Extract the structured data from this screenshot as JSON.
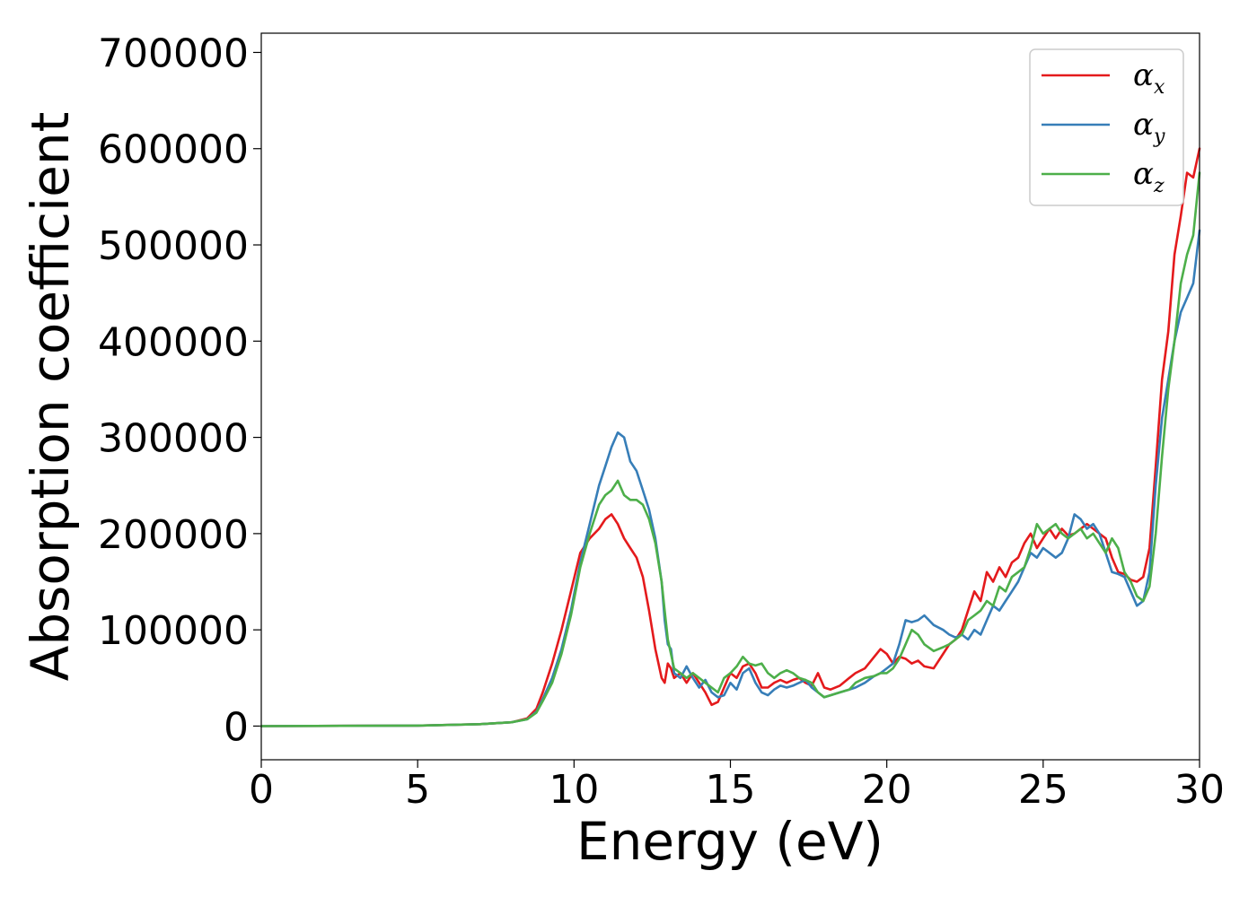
{
  "chart_data": {
    "type": "line",
    "title": "",
    "xlabel": "Energy (eV)",
    "ylabel": "Absorption coefficient",
    "xlim": [
      0,
      30
    ],
    "ylim": [
      -35000,
      720000
    ],
    "xticks": [
      0,
      5,
      10,
      15,
      20,
      25,
      30
    ],
    "yticks": [
      0,
      100000,
      200000,
      300000,
      400000,
      500000,
      600000,
      700000
    ],
    "xtick_labels": [
      "0",
      "5",
      "10",
      "15",
      "20",
      "25",
      "30"
    ],
    "ytick_labels": [
      "0",
      "100000",
      "200000",
      "300000",
      "400000",
      "500000",
      "600000",
      "700000"
    ],
    "grid": false,
    "legend_position": "top-right",
    "series": [
      {
        "name": "αx",
        "label_base": "α",
        "label_sub": "x",
        "color": "#e41a1c",
        "x": [
          0,
          5,
          7,
          8,
          8.5,
          8.8,
          9.0,
          9.3,
          9.6,
          9.9,
          10.2,
          10.5,
          10.8,
          11.0,
          11.2,
          11.4,
          11.6,
          11.8,
          12.0,
          12.2,
          12.4,
          12.6,
          12.8,
          12.9,
          13.0,
          13.1,
          13.2,
          13.4,
          13.6,
          13.8,
          14.0,
          14.2,
          14.4,
          14.6,
          14.8,
          15.0,
          15.2,
          15.4,
          15.6,
          15.8,
          16.0,
          16.2,
          16.4,
          16.6,
          16.8,
          17.0,
          17.2,
          17.4,
          17.6,
          17.8,
          18.0,
          18.2,
          18.5,
          18.8,
          19.0,
          19.3,
          19.6,
          19.8,
          20.0,
          20.2,
          20.4,
          20.6,
          20.8,
          21.0,
          21.2,
          21.5,
          21.8,
          22.0,
          22.2,
          22.4,
          22.6,
          22.8,
          23.0,
          23.2,
          23.4,
          23.6,
          23.8,
          24.0,
          24.2,
          24.4,
          24.6,
          24.8,
          25.0,
          25.2,
          25.4,
          25.6,
          25.8,
          26.0,
          26.2,
          26.4,
          26.6,
          26.8,
          27.0,
          27.2,
          27.4,
          27.6,
          27.8,
          28.0,
          28.2,
          28.4,
          28.6,
          28.8,
          29.0,
          29.2,
          29.4,
          29.6,
          29.8,
          30.0
        ],
        "y": [
          0,
          500,
          2000,
          4000,
          8000,
          18000,
          35000,
          65000,
          100000,
          140000,
          180000,
          195000,
          205000,
          215000,
          220000,
          210000,
          195000,
          185000,
          175000,
          155000,
          120000,
          80000,
          50000,
          45000,
          65000,
          60000,
          50000,
          55000,
          45000,
          55000,
          45000,
          35000,
          22000,
          25000,
          40000,
          55000,
          50000,
          62000,
          65000,
          55000,
          40000,
          40000,
          45000,
          48000,
          45000,
          48000,
          50000,
          45000,
          42000,
          55000,
          40000,
          38000,
          42000,
          50000,
          55000,
          60000,
          72000,
          80000,
          75000,
          65000,
          72000,
          70000,
          65000,
          68000,
          62000,
          60000,
          75000,
          85000,
          90000,
          100000,
          120000,
          140000,
          130000,
          160000,
          150000,
          165000,
          155000,
          170000,
          175000,
          190000,
          200000,
          185000,
          195000,
          205000,
          195000,
          205000,
          198000,
          200000,
          205000,
          210000,
          205000,
          200000,
          195000,
          175000,
          160000,
          158000,
          152000,
          150000,
          155000,
          185000,
          270000,
          360000,
          410000,
          490000,
          530000,
          575000,
          570000,
          600000
        ]
      },
      {
        "name": "αy",
        "label_base": "α",
        "label_sub": "y",
        "color": "#377eb8",
        "x": [
          0,
          5,
          7,
          8,
          8.5,
          8.8,
          9.0,
          9.3,
          9.6,
          9.9,
          10.2,
          10.5,
          10.8,
          11.0,
          11.2,
          11.4,
          11.6,
          11.8,
          12.0,
          12.2,
          12.4,
          12.6,
          12.8,
          12.9,
          13.0,
          13.1,
          13.2,
          13.4,
          13.6,
          13.8,
          14.0,
          14.2,
          14.4,
          14.6,
          14.8,
          15.0,
          15.2,
          15.4,
          15.6,
          15.8,
          16.0,
          16.2,
          16.4,
          16.6,
          16.8,
          17.0,
          17.2,
          17.4,
          17.6,
          17.8,
          18.0,
          18.2,
          18.5,
          18.8,
          19.0,
          19.3,
          19.6,
          19.8,
          20.0,
          20.2,
          20.4,
          20.6,
          20.8,
          21.0,
          21.2,
          21.5,
          21.8,
          22.0,
          22.2,
          22.4,
          22.6,
          22.8,
          23.0,
          23.2,
          23.4,
          23.6,
          23.8,
          24.0,
          24.2,
          24.4,
          24.6,
          24.8,
          25.0,
          25.2,
          25.4,
          25.6,
          25.8,
          26.0,
          26.2,
          26.4,
          26.6,
          26.8,
          27.0,
          27.2,
          27.4,
          27.6,
          27.8,
          28.0,
          28.2,
          28.4,
          28.6,
          28.8,
          29.0,
          29.2,
          29.4,
          29.6,
          29.8,
          30.0
        ],
        "y": [
          0,
          500,
          2000,
          4000,
          7000,
          15000,
          28000,
          50000,
          80000,
          120000,
          170000,
          210000,
          250000,
          270000,
          290000,
          305000,
          300000,
          275000,
          265000,
          245000,
          225000,
          195000,
          150000,
          110000,
          85000,
          80000,
          55000,
          50000,
          62000,
          50000,
          40000,
          48000,
          35000,
          30000,
          32000,
          45000,
          38000,
          55000,
          60000,
          45000,
          35000,
          32000,
          38000,
          42000,
          40000,
          42000,
          45000,
          48000,
          40000,
          35000,
          30000,
          32000,
          35000,
          38000,
          40000,
          45000,
          52000,
          55000,
          60000,
          65000,
          85000,
          110000,
          108000,
          110000,
          115000,
          105000,
          100000,
          95000,
          92000,
          95000,
          90000,
          100000,
          95000,
          110000,
          125000,
          120000,
          130000,
          140000,
          150000,
          165000,
          180000,
          175000,
          185000,
          180000,
          175000,
          180000,
          195000,
          220000,
          215000,
          205000,
          210000,
          200000,
          180000,
          160000,
          158000,
          155000,
          140000,
          125000,
          130000,
          160000,
          250000,
          320000,
          360000,
          400000,
          430000,
          445000,
          460000,
          515000
        ]
      },
      {
        "name": "αz",
        "label_base": "α",
        "label_sub": "z",
        "color": "#4daf4a",
        "x": [
          0,
          5,
          7,
          8,
          8.5,
          8.8,
          9.0,
          9.3,
          9.6,
          9.9,
          10.2,
          10.5,
          10.8,
          11.0,
          11.2,
          11.4,
          11.6,
          11.8,
          12.0,
          12.2,
          12.4,
          12.6,
          12.8,
          12.9,
          13.0,
          13.1,
          13.2,
          13.4,
          13.6,
          13.8,
          14.0,
          14.2,
          14.4,
          14.6,
          14.8,
          15.0,
          15.2,
          15.4,
          15.6,
          15.8,
          16.0,
          16.2,
          16.4,
          16.6,
          16.8,
          17.0,
          17.2,
          17.4,
          17.6,
          17.8,
          18.0,
          18.2,
          18.5,
          18.8,
          19.0,
          19.3,
          19.6,
          19.8,
          20.0,
          20.2,
          20.4,
          20.6,
          20.8,
          21.0,
          21.2,
          21.5,
          21.8,
          22.0,
          22.2,
          22.4,
          22.6,
          22.8,
          23.0,
          23.2,
          23.4,
          23.6,
          23.8,
          24.0,
          24.2,
          24.4,
          24.6,
          24.8,
          25.0,
          25.2,
          25.4,
          25.6,
          25.8,
          26.0,
          26.2,
          26.4,
          26.6,
          26.8,
          27.0,
          27.2,
          27.4,
          27.6,
          27.8,
          28.0,
          28.2,
          28.4,
          28.6,
          28.8,
          29.0,
          29.2,
          29.4,
          29.6,
          29.8,
          30.0
        ],
        "y": [
          0,
          500,
          2000,
          4000,
          7000,
          14000,
          26000,
          45000,
          75000,
          115000,
          165000,
          200000,
          230000,
          240000,
          245000,
          255000,
          240000,
          235000,
          235000,
          230000,
          215000,
          190000,
          150000,
          120000,
          90000,
          75000,
          60000,
          55000,
          50000,
          55000,
          50000,
          45000,
          40000,
          35000,
          50000,
          55000,
          62000,
          72000,
          65000,
          63000,
          65000,
          55000,
          50000,
          55000,
          58000,
          55000,
          50000,
          48000,
          45000,
          35000,
          30000,
          32000,
          35000,
          38000,
          45000,
          50000,
          52000,
          55000,
          55000,
          60000,
          70000,
          85000,
          100000,
          95000,
          85000,
          78000,
          82000,
          85000,
          90000,
          95000,
          110000,
          115000,
          120000,
          130000,
          125000,
          145000,
          140000,
          155000,
          160000,
          165000,
          185000,
          210000,
          200000,
          205000,
          210000,
          200000,
          195000,
          200000,
          205000,
          195000,
          200000,
          190000,
          180000,
          195000,
          185000,
          160000,
          150000,
          135000,
          130000,
          145000,
          200000,
          280000,
          350000,
          400000,
          460000,
          490000,
          510000,
          575000
        ]
      }
    ]
  }
}
